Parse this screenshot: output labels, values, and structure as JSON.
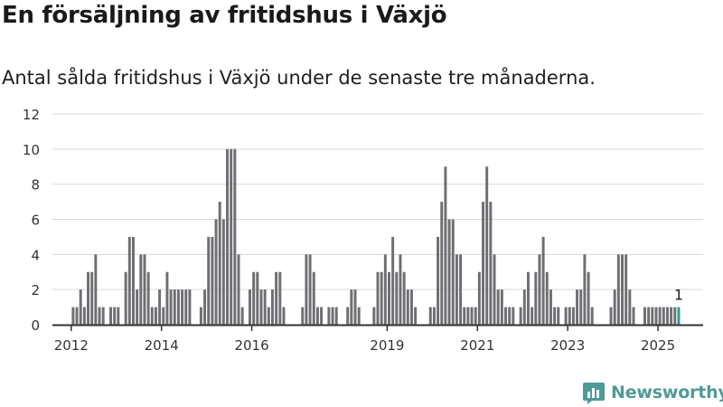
{
  "header": {
    "title": "En försäljning av fritidshus i Växjö",
    "subtitle": "Antal sålda fritidshus i Växjö under de senaste tre månaderna."
  },
  "brand": {
    "name": "Newsworthy",
    "logo_icon": "bar-chart-logo-icon"
  },
  "colors": {
    "bar": "#6f6e73",
    "highlight": "#2a9d94",
    "grid": "#d9d9d9",
    "axis": "#333333",
    "brand": "#4f9a97"
  },
  "chart_data": {
    "type": "bar",
    "ylim": [
      0,
      12
    ],
    "yticks": [
      0,
      2,
      4,
      6,
      8,
      10,
      12
    ],
    "xtick_labels": [
      "2012",
      "2014",
      "2016",
      "2019",
      "2021",
      "2023",
      "2025"
    ],
    "x_range": [
      "2011-08",
      "2025-12"
    ],
    "grid": true,
    "annotation": {
      "date": "2025-06",
      "text": "1"
    },
    "highlight_date": "2025-06",
    "series": [
      {
        "data": [
          [
            "2012-01",
            1
          ],
          [
            "2012-02",
            1
          ],
          [
            "2012-03",
            2
          ],
          [
            "2012-04",
            1
          ],
          [
            "2012-05",
            3
          ],
          [
            "2012-06",
            3
          ],
          [
            "2012-07",
            4
          ],
          [
            "2012-08",
            1
          ],
          [
            "2012-09",
            1
          ],
          [
            "2012-11",
            1
          ],
          [
            "2012-12",
            1
          ],
          [
            "2013-01",
            1
          ],
          [
            "2013-03",
            3
          ],
          [
            "2013-04",
            5
          ],
          [
            "2013-05",
            5
          ],
          [
            "2013-06",
            2
          ],
          [
            "2013-07",
            4
          ],
          [
            "2013-08",
            4
          ],
          [
            "2013-09",
            3
          ],
          [
            "2013-10",
            1
          ],
          [
            "2013-11",
            1
          ],
          [
            "2013-12",
            2
          ],
          [
            "2014-01",
            1
          ],
          [
            "2014-02",
            3
          ],
          [
            "2014-03",
            2
          ],
          [
            "2014-04",
            2
          ],
          [
            "2014-05",
            2
          ],
          [
            "2014-06",
            2
          ],
          [
            "2014-07",
            2
          ],
          [
            "2014-08",
            2
          ],
          [
            "2014-11",
            1
          ],
          [
            "2014-12",
            2
          ],
          [
            "2015-01",
            5
          ],
          [
            "2015-02",
            5
          ],
          [
            "2015-03",
            6
          ],
          [
            "2015-04",
            7
          ],
          [
            "2015-05",
            6
          ],
          [
            "2015-06",
            10
          ],
          [
            "2015-07",
            10
          ],
          [
            "2015-08",
            10
          ],
          [
            "2015-09",
            4
          ],
          [
            "2015-10",
            1
          ],
          [
            "2015-12",
            2
          ],
          [
            "2016-01",
            3
          ],
          [
            "2016-02",
            3
          ],
          [
            "2016-03",
            2
          ],
          [
            "2016-04",
            2
          ],
          [
            "2016-05",
            1
          ],
          [
            "2016-06",
            2
          ],
          [
            "2016-07",
            3
          ],
          [
            "2016-08",
            3
          ],
          [
            "2016-09",
            1
          ],
          [
            "2017-02",
            1
          ],
          [
            "2017-03",
            4
          ],
          [
            "2017-04",
            4
          ],
          [
            "2017-05",
            3
          ],
          [
            "2017-06",
            1
          ],
          [
            "2017-07",
            1
          ],
          [
            "2017-09",
            1
          ],
          [
            "2017-10",
            1
          ],
          [
            "2017-11",
            1
          ],
          [
            "2018-02",
            1
          ],
          [
            "2018-03",
            2
          ],
          [
            "2018-04",
            2
          ],
          [
            "2018-05",
            1
          ],
          [
            "2018-09",
            1
          ],
          [
            "2018-10",
            3
          ],
          [
            "2018-11",
            3
          ],
          [
            "2018-12",
            4
          ],
          [
            "2019-01",
            3
          ],
          [
            "2019-02",
            5
          ],
          [
            "2019-03",
            3
          ],
          [
            "2019-04",
            4
          ],
          [
            "2019-05",
            3
          ],
          [
            "2019-06",
            2
          ],
          [
            "2019-07",
            2
          ],
          [
            "2019-08",
            1
          ],
          [
            "2019-12",
            1
          ],
          [
            "2020-01",
            1
          ],
          [
            "2020-02",
            5
          ],
          [
            "2020-03",
            7
          ],
          [
            "2020-04",
            9
          ],
          [
            "2020-05",
            6
          ],
          [
            "2020-06",
            6
          ],
          [
            "2020-07",
            4
          ],
          [
            "2020-08",
            4
          ],
          [
            "2020-09",
            1
          ],
          [
            "2020-10",
            1
          ],
          [
            "2020-11",
            1
          ],
          [
            "2020-12",
            1
          ],
          [
            "2021-01",
            3
          ],
          [
            "2021-02",
            7
          ],
          [
            "2021-03",
            9
          ],
          [
            "2021-04",
            7
          ],
          [
            "2021-05",
            4
          ],
          [
            "2021-06",
            2
          ],
          [
            "2021-07",
            2
          ],
          [
            "2021-08",
            1
          ],
          [
            "2021-09",
            1
          ],
          [
            "2021-10",
            1
          ],
          [
            "2021-12",
            1
          ],
          [
            "2022-01",
            2
          ],
          [
            "2022-02",
            3
          ],
          [
            "2022-03",
            1
          ],
          [
            "2022-04",
            3
          ],
          [
            "2022-05",
            4
          ],
          [
            "2022-06",
            5
          ],
          [
            "2022-07",
            3
          ],
          [
            "2022-08",
            2
          ],
          [
            "2022-09",
            1
          ],
          [
            "2022-10",
            1
          ],
          [
            "2022-12",
            1
          ],
          [
            "2023-01",
            1
          ],
          [
            "2023-02",
            1
          ],
          [
            "2023-03",
            2
          ],
          [
            "2023-04",
            2
          ],
          [
            "2023-05",
            4
          ],
          [
            "2023-06",
            3
          ],
          [
            "2023-07",
            1
          ],
          [
            "2023-12",
            1
          ],
          [
            "2024-01",
            2
          ],
          [
            "2024-02",
            4
          ],
          [
            "2024-03",
            4
          ],
          [
            "2024-04",
            4
          ],
          [
            "2024-05",
            2
          ],
          [
            "2024-06",
            1
          ],
          [
            "2024-09",
            1
          ],
          [
            "2024-10",
            1
          ],
          [
            "2024-11",
            1
          ],
          [
            "2024-12",
            1
          ],
          [
            "2025-01",
            1
          ],
          [
            "2025-02",
            1
          ],
          [
            "2025-03",
            1
          ],
          [
            "2025-04",
            1
          ],
          [
            "2025-05",
            1
          ],
          [
            "2025-06",
            1
          ]
        ]
      }
    ]
  }
}
